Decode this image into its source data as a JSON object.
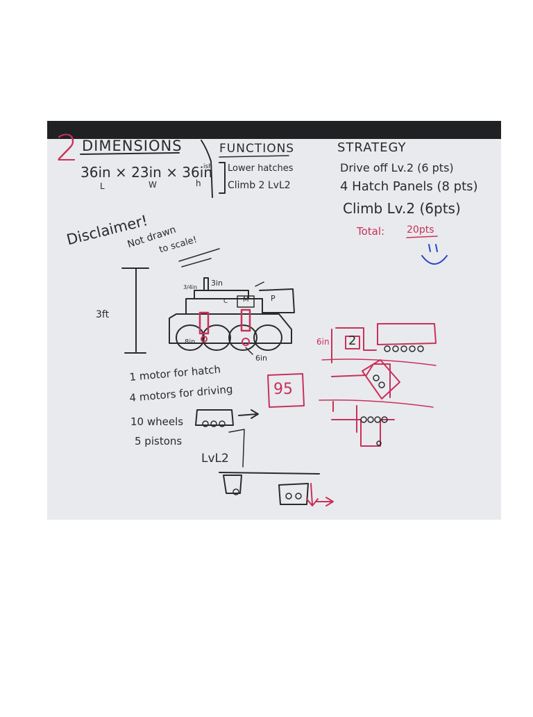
{
  "whiteboard": {
    "team_number": "2",
    "dimensions": {
      "heading": "DIMENSIONS",
      "values": "36in × 23in × 36in",
      "value_note": "ish",
      "axis_labels": [
        "L",
        "W",
        "h"
      ]
    },
    "functions": {
      "heading": "FUNCTIONS",
      "items": [
        "Lower hatches",
        "Climb 2 LvL2"
      ]
    },
    "strategy": {
      "heading": "STRATEGY",
      "items": [
        "Drive off Lv.2 (6 pts)",
        "4 Hatch Panels (8 pts)",
        "Climb Lv.2 (6pts)"
      ],
      "total_label": "Total:",
      "total_value": "20pts"
    },
    "disclaimer": [
      "Disclaimer!",
      "Not drawn",
      "to scale!"
    ],
    "robot_sketch": {
      "height_label": "3ft",
      "dimension_labels": [
        "3in",
        "3/4in",
        "8in",
        "6in"
      ],
      "box_letters": [
        "M",
        "P",
        "C"
      ]
    },
    "climb_sketch": {
      "step_height_label": "6in",
      "level_label": "2",
      "boxed_number": "95"
    },
    "parts_list": [
      "1 motor for hatch",
      "4 motors for driving",
      "10 wheels",
      "5 pistons"
    ],
    "level_label": "LvL2",
    "colors": {
      "black_marker": "#2a2a2a",
      "red_marker": "#c8305a",
      "blue_marker": "#2848c8",
      "board": "#e9eaed",
      "frame": "#202122"
    }
  }
}
